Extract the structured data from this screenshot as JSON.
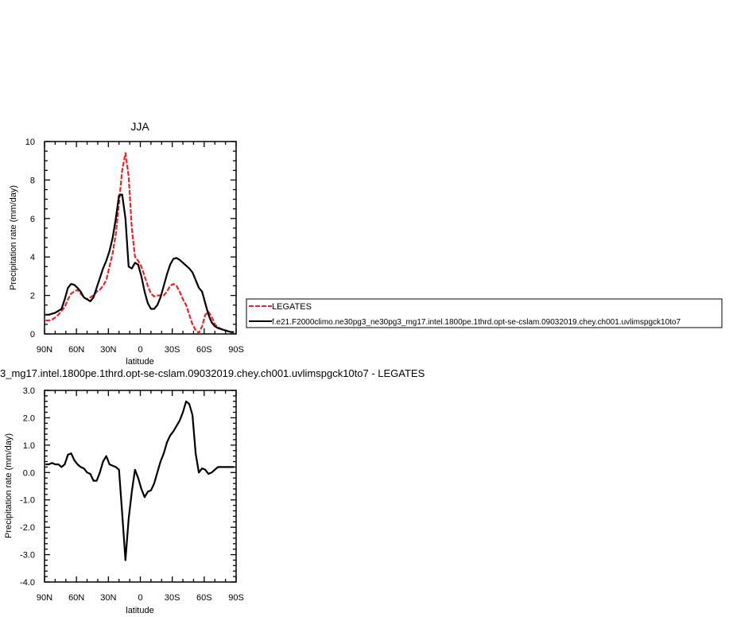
{
  "chart_data": [
    {
      "type": "line",
      "title": "JJA",
      "xlabel": "latitude",
      "ylabel": "Precipitation rate (mm/day)",
      "xlim": [
        90,
        -90
      ],
      "ylim": [
        0,
        10
      ],
      "x_ticks": [
        90,
        60,
        30,
        0,
        -30,
        -60,
        -90
      ],
      "x_tick_labels": [
        "90N",
        "60N",
        "30N",
        "0",
        "30S",
        "60S",
        "90S"
      ],
      "y_ticks": [
        0,
        2,
        4,
        6,
        8,
        10
      ],
      "y_tick_labels": [
        "0",
        "2",
        "4",
        "6",
        "8",
        "10"
      ],
      "legend_placement": "right-outside",
      "legend_entries": [
        "LEGATES",
        "f.e21.F2000climo.ne30pg3_ne30pg3_mg17.intel.1800pe.1thrd.opt-se-cslam.09032019.chey.ch001.uvlimspgck10to7"
      ],
      "series": [
        {
          "name": "LEGATES",
          "color": "#e8252a",
          "dash": true,
          "x": [
            89,
            86,
            83,
            80,
            77,
            74,
            71,
            68,
            65,
            62,
            59,
            56,
            53,
            50,
            47,
            44,
            41,
            38,
            35,
            32,
            29,
            26,
            23,
            20,
            17,
            14,
            11,
            8,
            5,
            2,
            -1,
            -4,
            -7,
            -10,
            -13,
            -16,
            -19,
            -22,
            -25,
            -28,
            -31,
            -34,
            -37,
            -40,
            -43,
            -46,
            -49,
            -52,
            -55,
            -58,
            -61,
            -64,
            -67,
            -70,
            -73,
            -76,
            -79,
            -82,
            -85,
            -88
          ],
          "y": [
            0.7,
            0.7,
            0.75,
            0.85,
            1.0,
            1.2,
            1.4,
            1.8,
            2.1,
            2.2,
            2.3,
            2.1,
            1.9,
            1.8,
            1.9,
            2.0,
            2.2,
            2.3,
            2.5,
            2.8,
            3.5,
            4.2,
            5.2,
            6.8,
            8.5,
            9.4,
            8.2,
            5.5,
            4.0,
            3.8,
            3.5,
            3.0,
            2.5,
            2.1,
            1.95,
            2.0,
            2.0,
            2.0,
            2.2,
            2.5,
            2.6,
            2.5,
            2.2,
            1.8,
            1.5,
            1.0,
            0.5,
            0.2,
            0.05,
            0.4,
            1.0,
            1.15,
            0.9,
            0.5,
            0.35,
            0.25,
            0.2,
            0.15,
            0.1,
            0.1
          ]
        },
        {
          "name": "f.e21.F2000climo.ne30pg3_ne30pg3_mg17.intel.1800pe.1thrd.opt-se-cslam.09032019.chey.ch001.uvlimspgck10to7",
          "color": "#000000",
          "dash": false,
          "x": [
            89,
            86,
            83,
            80,
            77,
            74,
            71,
            68,
            65,
            62,
            59,
            56,
            53,
            50,
            47,
            44,
            41,
            38,
            35,
            32,
            29,
            26,
            23,
            20,
            17,
            14,
            11,
            8,
            5,
            2,
            -1,
            -4,
            -7,
            -10,
            -13,
            -16,
            -19,
            -22,
            -25,
            -28,
            -31,
            -34,
            -37,
            -40,
            -43,
            -46,
            -49,
            -52,
            -55,
            -58,
            -61,
            -64,
            -67,
            -70,
            -73,
            -76,
            -79,
            -82,
            -85,
            -88
          ],
          "y": [
            1.0,
            1.0,
            1.05,
            1.1,
            1.2,
            1.3,
            1.8,
            2.4,
            2.6,
            2.55,
            2.4,
            2.2,
            1.9,
            1.8,
            1.7,
            1.9,
            2.4,
            2.9,
            3.4,
            3.8,
            4.3,
            5.0,
            6.0,
            7.2,
            7.25,
            6.0,
            3.5,
            3.4,
            3.7,
            3.6,
            3.0,
            2.2,
            1.6,
            1.3,
            1.3,
            1.5,
            1.9,
            2.5,
            3.1,
            3.6,
            3.9,
            3.95,
            3.85,
            3.7,
            3.55,
            3.4,
            3.2,
            2.8,
            2.4,
            2.2,
            1.6,
            1.0,
            0.6,
            0.4,
            0.3,
            0.25,
            0.2,
            0.15,
            0.1,
            0.1
          ]
        }
      ]
    },
    {
      "type": "line",
      "title": "3_mg17.intel.1800pe.1thrd.opt-se-cslam.09032019.chey.ch001.uvlimspgck10to7 - LEGATES",
      "xlabel": "latitude",
      "ylabel": "Precipitation rate (mm/day)",
      "xlim": [
        90,
        -90
      ],
      "ylim": [
        -4,
        3
      ],
      "x_ticks": [
        90,
        60,
        30,
        0,
        -30,
        -60,
        -90
      ],
      "x_tick_labels": [
        "90N",
        "60N",
        "30N",
        "0",
        "30S",
        "60S",
        "90S"
      ],
      "y_ticks": [
        3,
        2,
        1,
        0,
        -1,
        -2,
        -3,
        -4
      ],
      "y_tick_labels": [
        "3.0",
        "2.0",
        "1.0",
        "0.0",
        "-1.0",
        "-2.0",
        "-3.0",
        "-4.0"
      ],
      "series": [
        {
          "name": "",
          "color": "#000000",
          "dash": false,
          "x": [
            89,
            86,
            83,
            80,
            77,
            74,
            71,
            68,
            65,
            62,
            59,
            56,
            53,
            50,
            47,
            44,
            41,
            38,
            35,
            32,
            29,
            26,
            23,
            20,
            17,
            14,
            11,
            8,
            5,
            2,
            -1,
            -4,
            -7,
            -10,
            -13,
            -16,
            -19,
            -22,
            -25,
            -28,
            -31,
            -34,
            -37,
            -40,
            -43,
            -46,
            -49,
            -52,
            -55,
            -58,
            -61,
            -64,
            -67,
            -70,
            -73,
            -76,
            -79,
            -82,
            -85,
            -88
          ],
          "y": [
            0.3,
            0.3,
            0.35,
            0.3,
            0.3,
            0.2,
            0.3,
            0.65,
            0.7,
            0.45,
            0.3,
            0.2,
            0.15,
            0.0,
            -0.05,
            -0.3,
            -0.3,
            0.0,
            0.4,
            0.6,
            0.3,
            0.25,
            0.2,
            0.1,
            -1.5,
            -3.2,
            -1.7,
            -0.7,
            0.1,
            -0.2,
            -0.6,
            -0.9,
            -0.7,
            -0.65,
            -0.4,
            0.0,
            0.4,
            0.7,
            1.1,
            1.35,
            1.5,
            1.7,
            1.9,
            2.2,
            2.6,
            2.5,
            2.1,
            0.7,
            0.0,
            0.15,
            0.1,
            -0.05,
            0.0,
            0.1,
            0.2,
            0.2,
            0.2,
            0.2,
            0.2,
            0.2
          ]
        }
      ]
    }
  ]
}
